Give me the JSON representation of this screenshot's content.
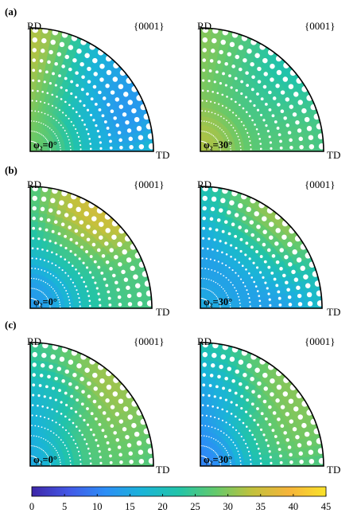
{
  "colors": {
    "colormap": [
      "#3e26a8",
      "#4358e6",
      "#2c8ef6",
      "#1ab4d8",
      "#22c4a8",
      "#64c96b",
      "#c2c13c",
      "#f6b43a",
      "#f9e22a"
    ],
    "outline": "#000000",
    "background": "#ffffff",
    "dot": "#ffffff"
  },
  "plot_labels": {
    "rd": "RD",
    "td": "TD",
    "plane": "{0001}"
  },
  "panels": [
    {
      "letter": "(a)",
      "plots": [
        {
          "phi": "φ₂=0°",
          "hotspots": [
            [
              0.58,
              0.85,
              38,
              0.32
            ],
            [
              0.22,
              0.72,
              36,
              0.22
            ],
            [
              0.65,
              0.45,
              4,
              0.26
            ],
            [
              0.35,
              0.35,
              16,
              0.22
            ],
            [
              0.95,
              0.55,
              14,
              0.2
            ],
            [
              0.1,
              0.2,
              28,
              0.2
            ]
          ]
        },
        {
          "phi": "φ₂=30°",
          "hotspots": [
            [
              0.6,
              0.85,
              38,
              0.3
            ],
            [
              0.2,
              0.6,
              38,
              0.2
            ],
            [
              0.6,
              0.55,
              12,
              0.3
            ],
            [
              0.62,
              0.25,
              32,
              0.25
            ]
          ]
        }
      ]
    },
    {
      "letter": "(b)",
      "plots": [
        {
          "phi": "φ₂=0°",
          "hotspots": [
            [
              0.85,
              0.6,
              40,
              0.25
            ],
            [
              0.1,
              0.88,
              8,
              0.2
            ],
            [
              0.3,
              0.45,
              18,
              0.35
            ],
            [
              0.75,
              0.1,
              28,
              0.2
            ]
          ]
        },
        {
          "phi": "φ₂=30°",
          "hotspots": [
            [
              0.8,
              0.55,
              40,
              0.25
            ],
            [
              0.45,
              0.52,
              4,
              0.3
            ],
            [
              0.1,
              0.35,
              22,
              0.25
            ],
            [
              0.1,
              0.9,
              12,
              0.2
            ]
          ]
        }
      ]
    },
    {
      "letter": "(c)",
      "plots": [
        {
          "phi": "φ₂=0°",
          "hotspots": [
            [
              0.45,
              0.8,
              8,
              0.2
            ],
            [
              0.15,
              0.5,
              6,
              0.25
            ],
            [
              0.5,
              0.45,
              40,
              0.3
            ],
            [
              0.55,
              0.2,
              24,
              0.25
            ]
          ]
        },
        {
          "phi": "φ₂=30°",
          "hotspots": [
            [
              0.45,
              0.82,
              10,
              0.2
            ],
            [
              0.22,
              0.5,
              4,
              0.3
            ],
            [
              0.6,
              0.45,
              36,
              0.28
            ],
            [
              0.7,
              0.3,
              30,
              0.2
            ]
          ]
        }
      ]
    }
  ],
  "colorbar": {
    "ticks": [
      "0",
      "5",
      "10",
      "15",
      "20",
      "25",
      "30",
      "35",
      "40",
      "45"
    ],
    "min": 0,
    "max": 45
  }
}
